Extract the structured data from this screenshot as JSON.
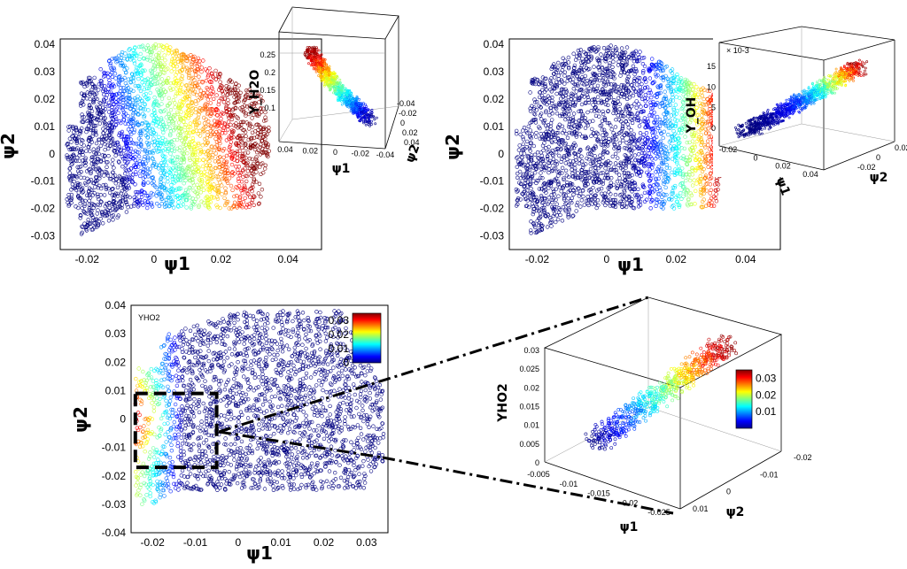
{
  "figure": {
    "panels": [
      {
        "label_x": "ψ1",
        "label_y": "ψ2"
      },
      {
        "label_x": "ψ1",
        "label_y": "ψ2"
      },
      {
        "label_x": "ψ1",
        "label_y": "ψ2"
      }
    ]
  },
  "chart_data": [
    {
      "type": "scatter",
      "panel": "top-left",
      "xlabel": "ψ1",
      "ylabel": "ψ2",
      "xlim": [
        -0.028,
        0.05
      ],
      "ylim": [
        -0.035,
        0.042
      ],
      "xticks": [
        "-0.02",
        "0",
        "0.02",
        "0.04"
      ],
      "yticks": [
        "0.04",
        "0.03",
        "0.02",
        "0.01",
        "0",
        "-0.01",
        "-0.02",
        "-0.03"
      ],
      "color_variable": "Y_H2O",
      "inset": {
        "type": "scatter3d",
        "zlabel": "Y_H2O",
        "xlabel": "ψ1",
        "ylabel": "ψ2",
        "zticks": [
          "0.25",
          "0.2",
          "0.15",
          "0.1"
        ],
        "xticks": [
          "0.04",
          "0.02",
          "0",
          "-0.02",
          "-0.04"
        ],
        "yticks": [
          "-0.04",
          "-0.02",
          "0",
          "0.02",
          "0.04"
        ]
      }
    },
    {
      "type": "scatter",
      "panel": "top-right",
      "xlabel": "ψ1",
      "ylabel": "ψ2",
      "xlim": [
        -0.028,
        0.05
      ],
      "ylim": [
        -0.035,
        0.042
      ],
      "xticks": [
        "-0.02",
        "0",
        "0.02",
        "0.04"
      ],
      "yticks": [
        "0.04",
        "0.03",
        "0.02",
        "0.01",
        "0",
        "-0.01",
        "-0.02",
        "-0.03"
      ],
      "color_variable": "Y_OH",
      "inset": {
        "type": "scatter3d",
        "zlabel": "Y_OH",
        "zscale": "× 10-3",
        "xlabel": "ψ1",
        "ylabel": "ψ2",
        "zticks": [
          "15",
          "10",
          "5",
          "0"
        ],
        "xticks": [
          "-0.02",
          "0",
          "0.02",
          "0.04"
        ],
        "yticks": [
          "0.02",
          "0",
          "-0.02"
        ]
      }
    },
    {
      "type": "scatter",
      "panel": "bottom",
      "xlabel": "ψ1",
      "ylabel": "ψ2",
      "xlim": [
        -0.025,
        0.035
      ],
      "ylim": [
        -0.04,
        0.04
      ],
      "xticks": [
        "-0.02",
        "-0.01",
        "0",
        "0.01",
        "0.02",
        "0.03"
      ],
      "yticks": [
        "0.04",
        "0.03",
        "0.02",
        "0.01",
        "0",
        "-0.01",
        "-0.02",
        "-0.03",
        "-0.04"
      ],
      "color_variable": "Y_HO2",
      "annotation": "YHO2",
      "colorbar": {
        "ticks": [
          "0.03",
          "0.02",
          "0.01",
          "0"
        ],
        "range": [
          0,
          0.035
        ]
      },
      "highlight_box": {
        "x": [
          -0.024,
          -0.005
        ],
        "y": [
          -0.017,
          0.009
        ]
      },
      "inset": {
        "type": "scatter3d",
        "zlabel": "YHO2",
        "xlabel": "ψ1",
        "ylabel": "ψ2",
        "zticks": [
          "0.03",
          "0.025",
          "0.02",
          "0.015",
          "0.01",
          "0.005",
          "0"
        ],
        "xticks": [
          "-0.005",
          "-0.01",
          "-0.015",
          "-0.02",
          "-0.025"
        ],
        "yticks": [
          "-0.02",
          "-0.01",
          "0",
          "0.01"
        ],
        "colorbar": {
          "ticks": [
            "0.03",
            "0.02",
            "0.01"
          ],
          "range": [
            0,
            0.035
          ]
        }
      }
    }
  ]
}
